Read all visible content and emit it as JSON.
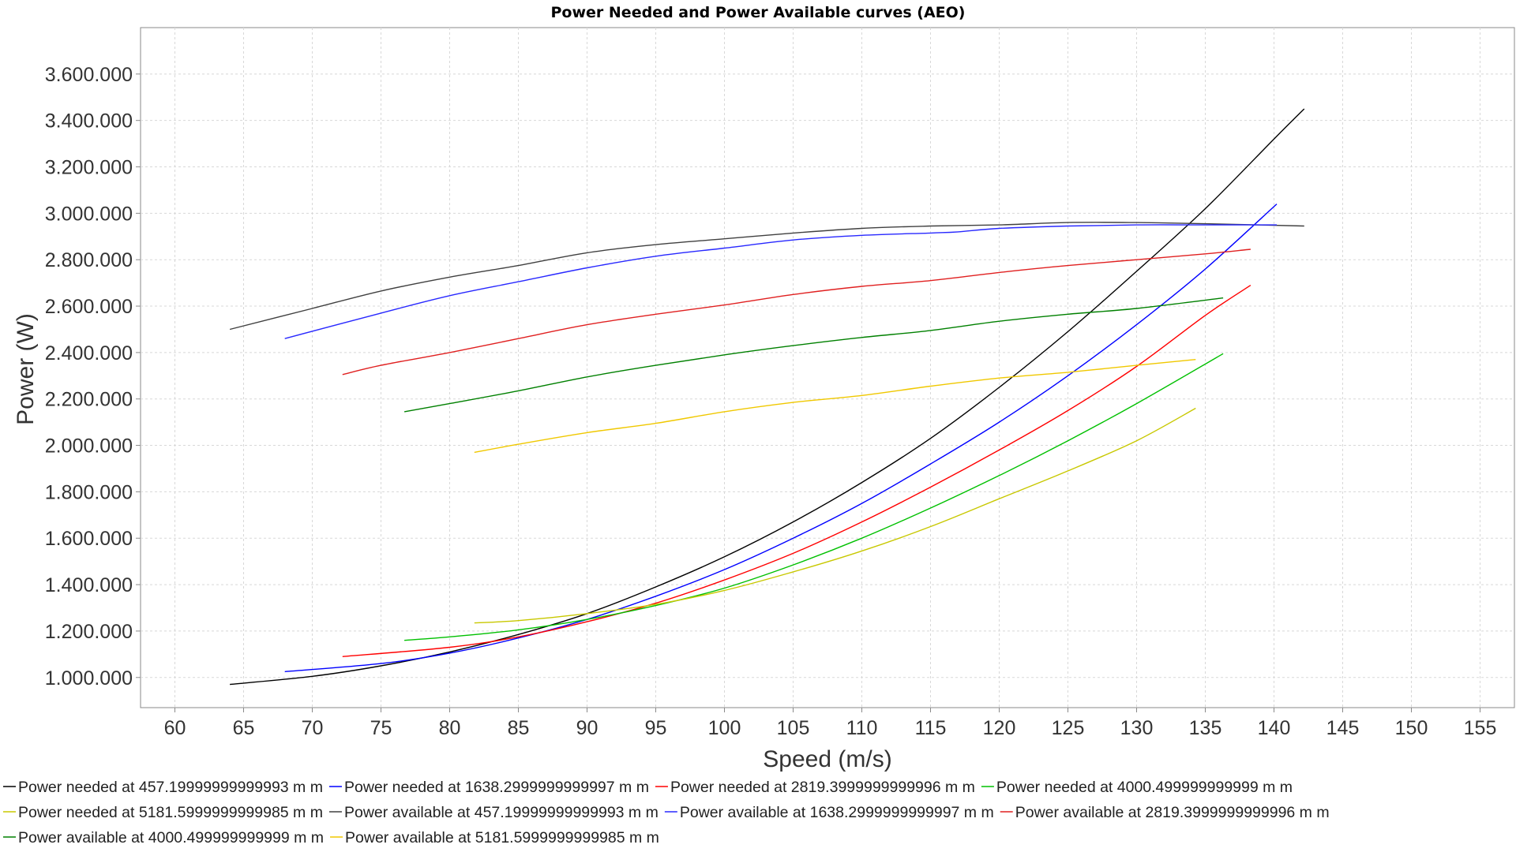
{
  "chart_data": {
    "type": "line",
    "title": "Power Needed and Power Available curves (AEO)",
    "xlabel": "Speed (m/s)",
    "ylabel": "Power (W)",
    "xlim": [
      57.5,
      157.5
    ],
    "ylim": [
      870000,
      3800000
    ],
    "x_ticks": [
      60,
      65,
      70,
      75,
      80,
      85,
      90,
      95,
      100,
      105,
      110,
      115,
      120,
      125,
      130,
      135,
      140,
      145,
      150,
      155
    ],
    "y_ticks": [
      1000000,
      1200000,
      1400000,
      1600000,
      1800000,
      2000000,
      2200000,
      2400000,
      2600000,
      2800000,
      3000000,
      3200000,
      3400000,
      3600000
    ],
    "y_tick_labels": [
      "1.000.000",
      "1.200.000",
      "1.400.000",
      "1.600.000",
      "1.800.000",
      "2.000.000",
      "2.200.000",
      "2.400.000",
      "2.600.000",
      "2.800.000",
      "3.000.000",
      "3.200.000",
      "3.400.000",
      "3.600.000"
    ],
    "grid": true,
    "legend_position": "bottom",
    "series": [
      {
        "name": "Power needed at 457.19999999999993 m m",
        "color": "#000000",
        "x": [
          64,
          70,
          75,
          80,
          85,
          90,
          95,
          100,
          105,
          110,
          115,
          120,
          125,
          130,
          135,
          140,
          142.2
        ],
        "y": [
          970000,
          1005000,
          1050000,
          1110000,
          1185000,
          1275000,
          1390000,
          1520000,
          1670000,
          1840000,
          2030000,
          2250000,
          2490000,
          2750000,
          3020000,
          3320000,
          3450000
        ]
      },
      {
        "name": "Power needed at 1638.2999999999997 m m",
        "color": "#0000ff",
        "x": [
          68,
          75,
          80,
          85,
          90,
          95,
          100,
          105,
          110,
          115,
          120,
          125,
          130,
          135,
          140.2
        ],
        "y": [
          1025000,
          1060000,
          1105000,
          1170000,
          1250000,
          1350000,
          1465000,
          1600000,
          1750000,
          1920000,
          2100000,
          2300000,
          2520000,
          2760000,
          3040000
        ]
      },
      {
        "name": "Power needed at 2819.3999999999996 m m",
        "color": "#ff0000",
        "x": [
          72.2,
          80,
          85,
          90,
          95,
          100,
          105,
          110,
          115,
          120,
          125,
          130,
          135,
          138.3
        ],
        "y": [
          1090000,
          1130000,
          1175000,
          1240000,
          1320000,
          1420000,
          1535000,
          1670000,
          1820000,
          1980000,
          2150000,
          2340000,
          2560000,
          2690000
        ]
      },
      {
        "name": "Power needed at 4000.499999999999 m m",
        "color": "#00c000",
        "x": [
          76.7,
          80,
          85,
          90,
          95,
          100,
          105,
          110,
          115,
          120,
          125,
          130,
          136.3
        ],
        "y": [
          1160000,
          1175000,
          1205000,
          1250000,
          1310000,
          1385000,
          1485000,
          1600000,
          1730000,
          1870000,
          2020000,
          2180000,
          2395000
        ]
      },
      {
        "name": "Power needed at 5181.5999999999985 m m",
        "color": "#c8c800",
        "x": [
          81.8,
          85,
          90,
          95,
          100,
          105,
          110,
          115,
          120,
          125,
          130,
          134.3
        ],
        "y": [
          1235000,
          1245000,
          1275000,
          1315000,
          1375000,
          1455000,
          1545000,
          1650000,
          1770000,
          1890000,
          2020000,
          2160000
        ]
      },
      {
        "name": "Power available at 457.19999999999993 m m",
        "color": "#404040",
        "x": [
          64,
          70,
          75,
          80,
          85,
          90,
          95,
          100,
          105,
          110,
          115,
          120,
          125,
          130,
          135,
          142.2
        ],
        "y": [
          2500000,
          2590000,
          2665000,
          2725000,
          2775000,
          2830000,
          2865000,
          2890000,
          2915000,
          2935000,
          2945000,
          2950000,
          2960000,
          2960000,
          2955000,
          2945000
        ]
      },
      {
        "name": "Power available at 1638.2999999999997 m m",
        "color": "#2828ff",
        "x": [
          68,
          75,
          80,
          85,
          90,
          95,
          100,
          105,
          110,
          115,
          117,
          120,
          125,
          130,
          135,
          140.2
        ],
        "y": [
          2460000,
          2570000,
          2645000,
          2705000,
          2765000,
          2815000,
          2850000,
          2885000,
          2905000,
          2915000,
          2920000,
          2935000,
          2945000,
          2950000,
          2950000,
          2950000
        ]
      },
      {
        "name": "Power available at 2819.3999999999996 m m",
        "color": "#e02020",
        "x": [
          72.2,
          75,
          80,
          85,
          90,
          95,
          100,
          105,
          110,
          115,
          120,
          125,
          130,
          135,
          138.3
        ],
        "y": [
          2305000,
          2345000,
          2400000,
          2460000,
          2520000,
          2565000,
          2605000,
          2650000,
          2685000,
          2710000,
          2745000,
          2775000,
          2800000,
          2825000,
          2845000
        ]
      },
      {
        "name": "Power available at 4000.499999999999 m m",
        "color": "#008000",
        "x": [
          76.7,
          80,
          85,
          90,
          95,
          100,
          105,
          110,
          115,
          120,
          125,
          130,
          136.3
        ],
        "y": [
          2145000,
          2180000,
          2235000,
          2295000,
          2345000,
          2390000,
          2430000,
          2465000,
          2495000,
          2535000,
          2565000,
          2590000,
          2635000
        ]
      },
      {
        "name": "Power available at 5181.5999999999985 m m",
        "color": "#f0c800",
        "x": [
          81.8,
          85,
          90,
          95,
          100,
          105,
          110,
          115,
          120,
          125,
          130,
          134.3
        ],
        "y": [
          1970000,
          2005000,
          2055000,
          2095000,
          2145000,
          2185000,
          2215000,
          2255000,
          2290000,
          2315000,
          2345000,
          2370000
        ]
      }
    ]
  }
}
